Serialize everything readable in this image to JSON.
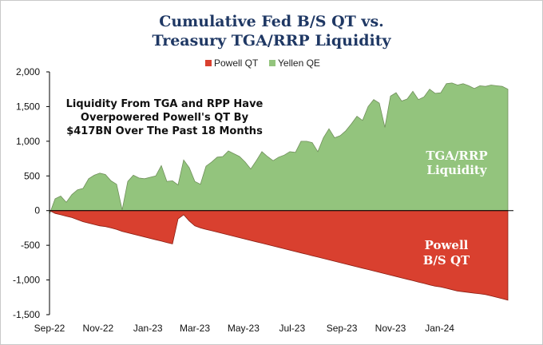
{
  "chart_data": {
    "type": "area",
    "title_lines": [
      "Cumulative Fed B/S QT vs.",
      "Treasury TGA/RRP Liquidity"
    ],
    "legend": [
      {
        "name": "Powell QT",
        "color": "#d9402f"
      },
      {
        "name": "Yellen QE",
        "color": "#93c47d"
      }
    ],
    "ylim": [
      -1500,
      2000
    ],
    "y_ticks": [
      {
        "value": 2000,
        "label": "2,000"
      },
      {
        "value": 1500,
        "label": "1,500"
      },
      {
        "value": 1000,
        "label": "1,000"
      },
      {
        "value": 500,
        "label": "500"
      },
      {
        "value": 0,
        "label": "0"
      },
      {
        "value": -500,
        "label": "-500"
      },
      {
        "value": -1000,
        "label": "-1,000"
      },
      {
        "value": -1500,
        "label": "-1,500"
      }
    ],
    "x_range_weeks": [
      0,
      83
    ],
    "x_ticks": [
      {
        "week": 0,
        "label": "Sep-22"
      },
      {
        "week": 8.7,
        "label": "Nov-22"
      },
      {
        "week": 17.6,
        "label": "Jan-23"
      },
      {
        "week": 26.0,
        "label": "Mar-23"
      },
      {
        "week": 34.7,
        "label": "May-23"
      },
      {
        "week": 43.4,
        "label": "Jul-23"
      },
      {
        "week": 52.3,
        "label": "Sep-23"
      },
      {
        "week": 61.0,
        "label": "Nov-23"
      },
      {
        "week": 69.8,
        "label": "Jan-24"
      }
    ],
    "series": [
      {
        "name": "Yellen QE",
        "color": "#93c47d",
        "x_weeks": [
          0,
          1,
          2,
          3,
          4,
          5,
          6,
          7,
          8,
          9,
          10,
          11,
          12,
          13,
          14,
          15,
          16,
          17,
          18,
          19,
          20,
          21,
          22,
          23,
          24,
          25,
          26,
          27,
          28,
          29,
          30,
          31,
          32,
          33,
          34,
          35,
          36,
          37,
          38,
          39,
          40,
          41,
          42,
          43,
          44,
          45,
          46,
          47,
          48,
          49,
          50,
          51,
          52,
          53,
          54,
          55,
          56,
          57,
          58,
          59,
          60,
          61,
          62,
          63,
          64,
          65,
          66,
          67,
          68,
          69,
          70,
          71,
          72,
          73,
          74,
          75,
          76,
          77,
          78,
          79,
          80,
          81,
          82
        ],
        "values": [
          -50,
          170,
          210,
          120,
          230,
          300,
          320,
          460,
          510,
          540,
          520,
          430,
          380,
          10,
          420,
          510,
          470,
          460,
          480,
          500,
          650,
          420,
          430,
          370,
          730,
          620,
          420,
          380,
          640,
          700,
          770,
          780,
          860,
          820,
          780,
          700,
          600,
          720,
          850,
          780,
          720,
          770,
          800,
          850,
          840,
          1000,
          1000,
          980,
          850,
          1050,
          1180,
          1050,
          1080,
          1150,
          1250,
          1360,
          1300,
          1500,
          1600,
          1550,
          1200,
          1650,
          1700,
          1580,
          1610,
          1720,
          1600,
          1640,
          1750,
          1690,
          1700,
          1830,
          1840,
          1810,
          1830,
          1800,
          1760,
          1800,
          1790,
          1810,
          1800,
          1790,
          1750
        ]
      },
      {
        "name": "Powell QT",
        "color": "#d9402f",
        "x_weeks": [
          0,
          1,
          2,
          3,
          4,
          5,
          6,
          7,
          8,
          9,
          10,
          11,
          12,
          13,
          14,
          15,
          16,
          17,
          18,
          19,
          20,
          21,
          22,
          23,
          24,
          25,
          26,
          27,
          28,
          29,
          30,
          31,
          32,
          33,
          34,
          35,
          36,
          37,
          38,
          39,
          40,
          41,
          42,
          43,
          44,
          45,
          46,
          47,
          48,
          49,
          50,
          51,
          52,
          53,
          54,
          55,
          56,
          57,
          58,
          59,
          60,
          61,
          62,
          63,
          64,
          65,
          66,
          67,
          68,
          69,
          70,
          71,
          72,
          73,
          74,
          75,
          76,
          77,
          78,
          79,
          80,
          81,
          82
        ],
        "values": [
          0,
          -40,
          -60,
          -80,
          -100,
          -130,
          -160,
          -180,
          -200,
          -220,
          -230,
          -250,
          -270,
          -300,
          -320,
          -340,
          -360,
          -380,
          -400,
          -420,
          -440,
          -460,
          -480,
          -120,
          -60,
          -150,
          -220,
          -250,
          -270,
          -290,
          -310,
          -330,
          -350,
          -370,
          -390,
          -410,
          -430,
          -450,
          -470,
          -490,
          -510,
          -530,
          -550,
          -570,
          -590,
          -610,
          -630,
          -650,
          -670,
          -690,
          -710,
          -730,
          -750,
          -770,
          -790,
          -810,
          -830,
          -850,
          -870,
          -890,
          -910,
          -930,
          -950,
          -970,
          -990,
          -1010,
          -1030,
          -1050,
          -1070,
          -1090,
          -1100,
          -1120,
          -1140,
          -1160,
          -1170,
          -1180,
          -1190,
          -1200,
          -1210,
          -1230,
          -1250,
          -1270,
          -1290
        ]
      }
    ],
    "annotation_lines": [
      "Liquidity From TGA and RPP Have",
      "Overpowered Powell's QT By",
      "$417BN Over The Past 18 Months"
    ],
    "area_labels": {
      "yellen": [
        "TGA/RRP",
        "Liquidity"
      ],
      "powell": [
        "Powell",
        "B/S QT"
      ]
    }
  }
}
